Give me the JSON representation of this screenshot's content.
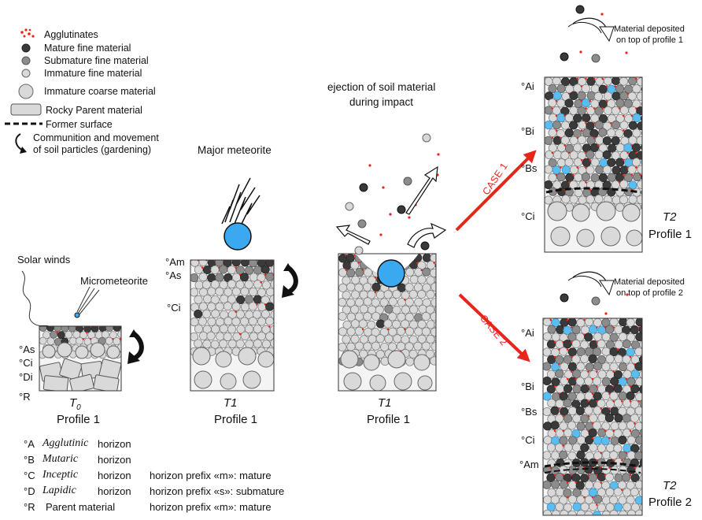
{
  "legend": {
    "agglutinates": "Agglutinates",
    "mature_fine": "Mature fine material",
    "submature_fine": "Submature fine material",
    "immature_fine": "Immature fine material",
    "immature_coarse": "Immature coarse material",
    "rocky_parent": "Rocky Parent material",
    "former_surface": "Former surface",
    "gardening_line1": "Communition and movement",
    "gardening_line2": "of soil particles (gardening)"
  },
  "labels": {
    "major_meteorite": "Major meteorite",
    "solar_winds": "Solar winds",
    "micrometeorite": "Micrometeorite",
    "ejection_line1": "ejection of soil material",
    "ejection_line2": "during impact",
    "deposit1_line1": "Material deposited",
    "deposit1_line2": "on top of profile 1",
    "deposit2_line1": "Material deposited",
    "deposit2_line2": "on top of profile 2",
    "case1": "CASE 1",
    "case2": "CASE 2"
  },
  "profiles": {
    "t0": {
      "time": "T",
      "sub": "0",
      "name": "Profile 1",
      "horizons": [
        "°As",
        "°Ci",
        "°Di",
        "°R"
      ]
    },
    "t1a": {
      "time": "T1",
      "name": "Profile 1",
      "horizons": [
        "°Am",
        "°As",
        "°Ci"
      ]
    },
    "t1b": {
      "time": "T1",
      "name": "Profile 1"
    },
    "t2a": {
      "time": "T2",
      "name": "Profile 1",
      "horizons": [
        "°Ai",
        "°Bi",
        "°Bs",
        "°Ci"
      ]
    },
    "t2b": {
      "time": "T2",
      "name": "Profile 2",
      "horizons": [
        "°Ai",
        "°Bi",
        "°Bs",
        "°Ci",
        "°Am"
      ]
    }
  },
  "horizon_key": [
    {
      "code": "°A",
      "name": "Agglutinic",
      "word": "horizon"
    },
    {
      "code": "°B",
      "name": "Mutaric",
      "word": "horizon"
    },
    {
      "code": "°C",
      "name": "Inceptic",
      "word": "horizon"
    },
    {
      "code": "°D",
      "name": "Lapidic",
      "word": "horizon"
    },
    {
      "code": "°R",
      "name": "Parent material",
      "word": ""
    }
  ],
  "prefix_notes": [
    "horizon prefix «m»: mature",
    "horizon prefix «s»: submature",
    "horizon prefix «m»: mature"
  ],
  "colors": {
    "mature": "#3a3a3a",
    "submature": "#8c8c8c",
    "immature": "#d9d9d9",
    "agglutinate": "#e8251b",
    "meteorite": "#3aa9f0",
    "blue_grain": "#5bbcef",
    "case_arrow": "#e8251b"
  }
}
